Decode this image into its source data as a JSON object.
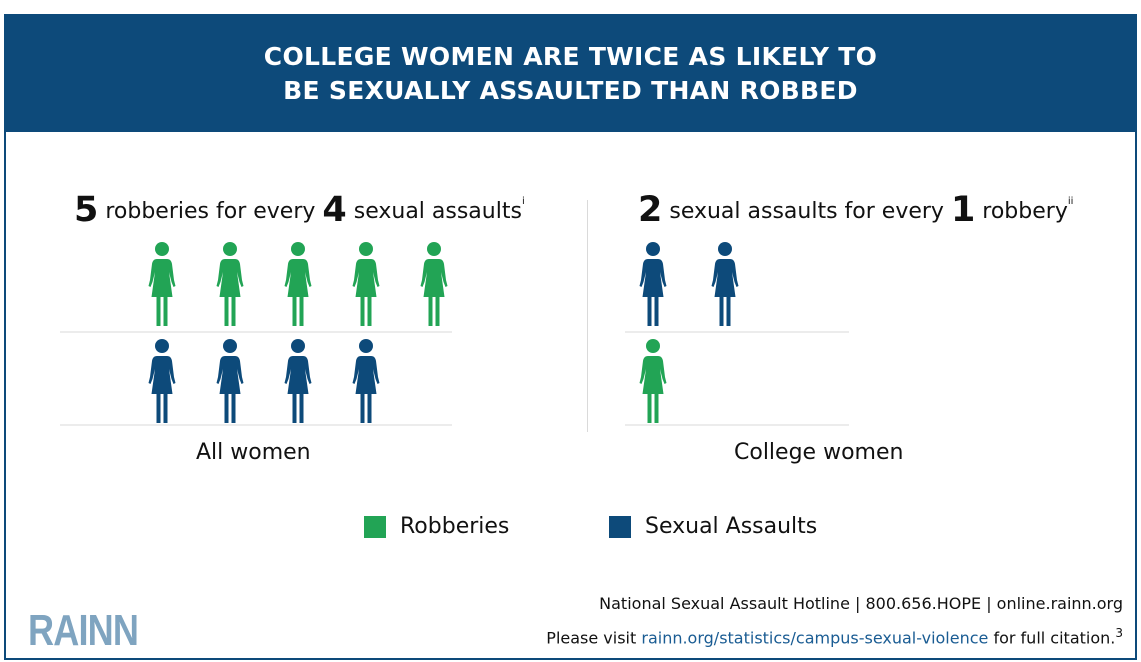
{
  "header": {
    "line1": "COLLEGE WOMEN ARE TWICE AS LIKELY TO",
    "line2": "BE SEXUALLY ASSAULTED THAN ROBBED"
  },
  "colors": {
    "robbery": "#22a455",
    "assault": "#0d4a7a",
    "header_bg": "#0d4a7a"
  },
  "left_panel": {
    "num1": "5",
    "text1": " robberies for every ",
    "num2": "4",
    "text2": " sexual assaults",
    "footnote": "i",
    "label": "All women",
    "robberies": 5,
    "sexual_assaults": 4
  },
  "right_panel": {
    "num1": "2",
    "text1": " sexual assaults for every ",
    "num2": "1",
    "text2": " robbery",
    "footnote": "ii",
    "label": "College women",
    "sexual_assaults": 2,
    "robberies": 1
  },
  "legend": {
    "robberies": "Robberies",
    "sexual_assaults": "Sexual Assaults"
  },
  "footer": {
    "logo": "RAINN",
    "hotline": "National Sexual Assault Hotline | 800.656.HOPE | online.rainn.org",
    "visit_prefix": "Please visit ",
    "visit_link": "rainn.org/statistics/campus-sexual-violence",
    "visit_suffix": " for full citation.",
    "citation_number": "3"
  },
  "icons": {
    "person": "woman-figure-icon"
  }
}
